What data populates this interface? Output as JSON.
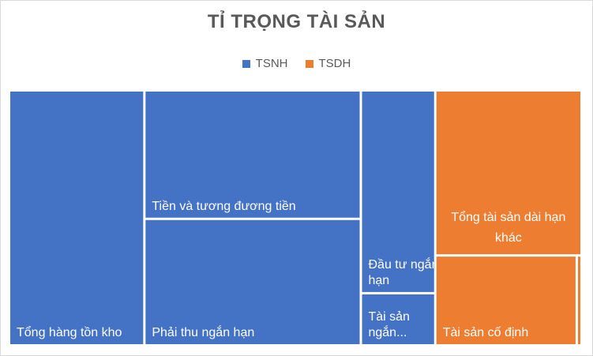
{
  "chart_data": {
    "type": "treemap",
    "title": "TỈ TRỌNG TÀI SẢN",
    "legend": [
      "TSNH",
      "TSDH"
    ],
    "legend_position": "top",
    "colors": {
      "TSNH": "#4472c4",
      "TSDH": "#ed7d31"
    },
    "series": [
      {
        "name": "TSNH",
        "items": [
          {
            "label": "Tổng hàng tồn kho",
            "value": 160
          },
          {
            "label": "Tiền và tương đương tiền",
            "value": 129
          },
          {
            "label": "Phải thu ngắn hạn",
            "value": 127
          },
          {
            "label": "Đầu tư ngắn hạn",
            "value": 70
          },
          {
            "label": "Tài sản ngắn...",
            "value": 18
          }
        ]
      },
      {
        "name": "TSDH",
        "items": [
          {
            "label": "Tổng tài sản dài hạn khác",
            "value": 112
          },
          {
            "label": "Tài sản cố định",
            "value": 59
          },
          {
            "label": "",
            "value": 2
          }
        ]
      }
    ]
  }
}
